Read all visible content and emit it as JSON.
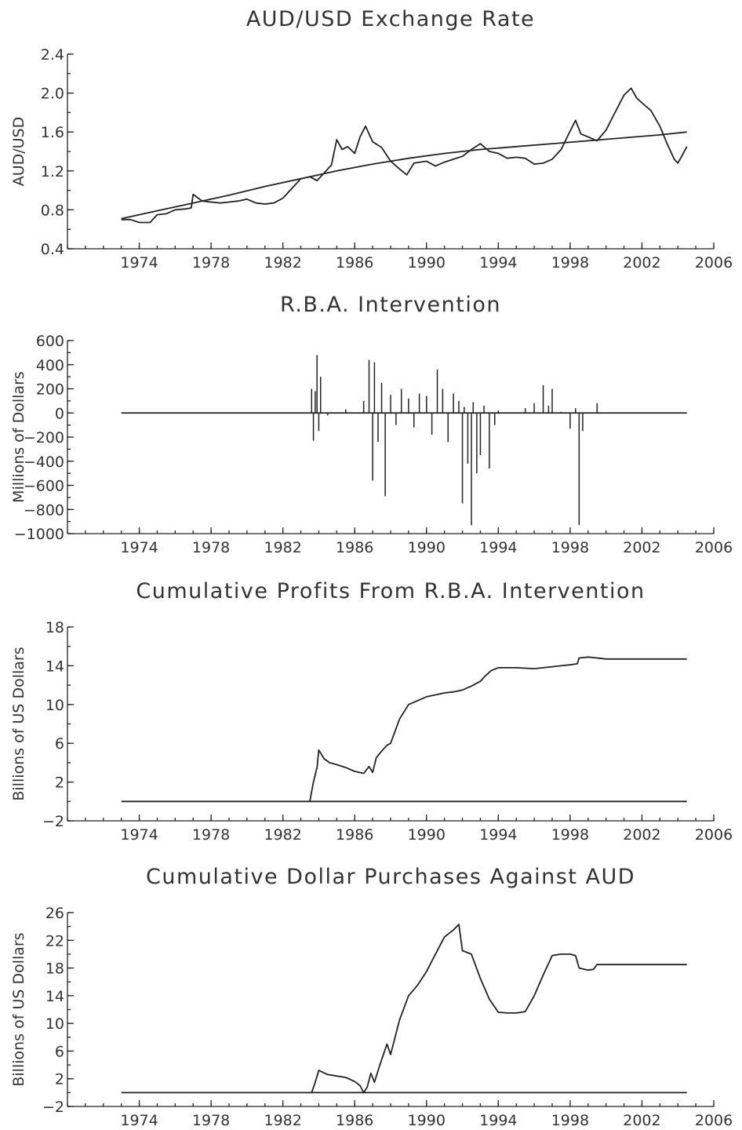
{
  "chart_data": [
    {
      "type": "line",
      "title": "AUD/USD Exchange Rate",
      "xlabel": "",
      "ylabel": "AUD/USD",
      "xlim": [
        1970,
        2006
      ],
      "ylim": [
        0.4,
        2.4
      ],
      "x_ticks": [
        "1974",
        "1978",
        "1982",
        "1986",
        "1990",
        "1994",
        "1998",
        "2002",
        "2006"
      ],
      "y_ticks": [
        "0.4",
        "0.8",
        "1.2",
        "1.6",
        "2.0",
        "2.4"
      ],
      "grid": false,
      "series": [
        {
          "kind": "exchange-rate",
          "x": [
            1973.0,
            1973.5,
            1974.0,
            1974.6,
            1975.0,
            1975.5,
            1976.0,
            1976.6,
            1976.9,
            1977.0,
            1977.5,
            1978.0,
            1978.5,
            1979.0,
            1979.5,
            1980.0,
            1980.5,
            1981.0,
            1981.5,
            1982.0,
            1982.5,
            1983.0,
            1983.5,
            1983.9,
            1984.3,
            1984.7,
            1985.0,
            1985.3,
            1985.6,
            1986.0,
            1986.3,
            1986.6,
            1987.0,
            1987.5,
            1988.0,
            1988.5,
            1988.9,
            1989.3,
            1990.0,
            1990.5,
            1991.0,
            1991.5,
            1992.0,
            1992.5,
            1993.0,
            1993.5,
            1994.0,
            1994.5,
            1995.0,
            1995.5,
            1996.0,
            1996.5,
            1997.0,
            1997.5,
            1998.0,
            1998.3,
            1998.6,
            1999.0,
            1999.5,
            2000.0,
            2000.5,
            2001.0,
            2001.4,
            2001.7,
            2002.0,
            2002.5,
            2003.0,
            2003.4,
            2003.8,
            2004.0,
            2004.3,
            2004.5
          ],
          "y": [
            0.7,
            0.7,
            0.67,
            0.67,
            0.75,
            0.76,
            0.8,
            0.81,
            0.82,
            0.96,
            0.89,
            0.88,
            0.87,
            0.88,
            0.89,
            0.91,
            0.87,
            0.86,
            0.87,
            0.92,
            1.02,
            1.12,
            1.14,
            1.1,
            1.18,
            1.26,
            1.52,
            1.42,
            1.45,
            1.38,
            1.55,
            1.66,
            1.5,
            1.44,
            1.3,
            1.22,
            1.16,
            1.28,
            1.3,
            1.25,
            1.29,
            1.32,
            1.35,
            1.42,
            1.48,
            1.4,
            1.38,
            1.33,
            1.34,
            1.33,
            1.27,
            1.28,
            1.32,
            1.42,
            1.61,
            1.72,
            1.58,
            1.55,
            1.51,
            1.62,
            1.8,
            1.98,
            2.05,
            1.95,
            1.9,
            1.82,
            1.66,
            1.48,
            1.32,
            1.28,
            1.38,
            1.45
          ]
        },
        {
          "kind": "trend",
          "x": [
            1973.0,
            1975.0,
            1977.0,
            1979.0,
            1981.0,
            1983.0,
            1985.0,
            1987.0,
            1989.0,
            1991.0,
            1993.0,
            1995.0,
            1997.0,
            1999.0,
            2001.0,
            2003.0,
            2004.5
          ],
          "y": [
            0.71,
            0.79,
            0.87,
            0.95,
            1.04,
            1.12,
            1.2,
            1.27,
            1.33,
            1.38,
            1.42,
            1.45,
            1.48,
            1.51,
            1.54,
            1.57,
            1.6
          ]
        }
      ]
    },
    {
      "type": "bar",
      "title": "R.B.A. Intervention",
      "xlabel": "",
      "ylabel": "Millions of Dollars",
      "xlim": [
        1970,
        2006
      ],
      "ylim": [
        -1000,
        600
      ],
      "x_ticks": [
        "1974",
        "1978",
        "1982",
        "1986",
        "1990",
        "1994",
        "1998",
        "2002",
        "2006"
      ],
      "y_ticks": [
        "600",
        "400",
        "200",
        "0",
        "−200",
        "−400",
        "−600",
        "−800",
        "−1000"
      ],
      "grid": false,
      "zero_line_x": [
        1973.0,
        2004.5
      ],
      "x": [
        1983.6,
        1983.7,
        1983.8,
        1983.9,
        1984.0,
        1984.1,
        1984.5,
        1985.5,
        1986.5,
        1986.8,
        1987.0,
        1987.1,
        1987.3,
        1987.5,
        1987.7,
        1988.0,
        1988.3,
        1988.6,
        1989.0,
        1989.3,
        1989.6,
        1990.0,
        1990.3,
        1990.6,
        1990.9,
        1991.2,
        1991.5,
        1991.8,
        1992.0,
        1992.1,
        1992.3,
        1992.5,
        1992.6,
        1992.8,
        1993.0,
        1993.2,
        1993.5,
        1993.8,
        1994.0,
        1995.5,
        1996.0,
        1996.5,
        1996.8,
        1997.0,
        1997.5,
        1998.0,
        1998.3,
        1998.5,
        1998.7,
        1999.5
      ],
      "values": [
        200,
        -230,
        180,
        480,
        -150,
        300,
        -20,
        30,
        100,
        440,
        -560,
        420,
        -240,
        250,
        -690,
        150,
        -100,
        200,
        120,
        -120,
        160,
        140,
        -180,
        360,
        200,
        -240,
        160,
        100,
        -750,
        50,
        -420,
        -930,
        90,
        -500,
        -350,
        60,
        -460,
        -100,
        20,
        40,
        80,
        230,
        60,
        200,
        10,
        -130,
        40,
        -930,
        -150,
        80
      ]
    },
    {
      "type": "line",
      "title": "Cumulative Profits From R.B.A. Intervention",
      "xlabel": "",
      "ylabel": "Billions of US Dollars",
      "xlim": [
        1970,
        2006
      ],
      "ylim": [
        -2,
        18
      ],
      "x_ticks": [
        "1974",
        "1978",
        "1982",
        "1986",
        "1990",
        "1994",
        "1998",
        "2002",
        "2006"
      ],
      "y_ticks": [
        "−2",
        "2",
        "6",
        "10",
        "14",
        "18"
      ],
      "grid": false,
      "series": [
        {
          "kind": "baseline",
          "x": [
            1973.0,
            2004.5
          ],
          "y": [
            0.0,
            0.0
          ]
        },
        {
          "kind": "cumulative-profits",
          "x": [
            1983.5,
            1983.7,
            1983.9,
            1984.0,
            1984.3,
            1984.6,
            1985.0,
            1985.5,
            1986.0,
            1986.5,
            1986.8,
            1987.0,
            1987.2,
            1987.5,
            1987.8,
            1988.0,
            1988.5,
            1989.0,
            1989.5,
            1990.0,
            1990.5,
            1991.0,
            1991.5,
            1992.0,
            1992.5,
            1993.0,
            1993.3,
            1993.6,
            1994.0,
            1995.0,
            1996.0,
            1996.5,
            1997.0,
            1997.5,
            1998.0,
            1998.4,
            1998.5,
            1999.0,
            1999.5,
            2000.0,
            2004.5
          ],
          "y": [
            0.0,
            2.0,
            3.5,
            5.3,
            4.4,
            4.0,
            3.8,
            3.5,
            3.1,
            2.9,
            3.6,
            3.0,
            4.5,
            5.2,
            5.8,
            6.0,
            8.5,
            10.0,
            10.4,
            10.8,
            11.0,
            11.2,
            11.3,
            11.5,
            11.9,
            12.4,
            13.0,
            13.5,
            13.8,
            13.8,
            13.7,
            13.8,
            13.9,
            14.0,
            14.1,
            14.2,
            14.8,
            14.9,
            14.8,
            14.7,
            14.7
          ]
        }
      ]
    },
    {
      "type": "line",
      "title": "Cumulative Dollar Purchases Against AUD",
      "xlabel": "",
      "ylabel": "Billions of US Dollars",
      "xlim": [
        1970,
        2006
      ],
      "ylim": [
        -2,
        26
      ],
      "x_ticks": [
        "1974",
        "1978",
        "1982",
        "1986",
        "1990",
        "1994",
        "1998",
        "2002",
        "2006"
      ],
      "y_ticks": [
        "−2",
        "2",
        "6",
        "10",
        "14",
        "18",
        "22",
        "26"
      ],
      "grid": false,
      "series": [
        {
          "kind": "baseline",
          "x": [
            1973.0,
            2004.5
          ],
          "y": [
            0.0,
            0.0
          ]
        },
        {
          "kind": "cumulative-purchases",
          "x": [
            1983.6,
            1983.8,
            1984.0,
            1984.5,
            1985.0,
            1985.5,
            1986.0,
            1986.3,
            1986.5,
            1986.7,
            1986.9,
            1987.1,
            1987.4,
            1987.6,
            1987.8,
            1988.0,
            1988.5,
            1989.0,
            1989.5,
            1990.0,
            1990.5,
            1991.0,
            1991.5,
            1991.8,
            1992.0,
            1992.5,
            1993.0,
            1993.5,
            1994.0,
            1994.5,
            1995.0,
            1995.5,
            1996.0,
            1996.5,
            1997.0,
            1997.5,
            1998.0,
            1998.3,
            1998.5,
            1999.0,
            1999.3,
            1999.5,
            2004.5
          ],
          "y": [
            0.0,
            1.5,
            3.2,
            2.6,
            2.4,
            2.2,
            1.6,
            1.0,
            0.0,
            0.8,
            2.8,
            1.5,
            4.0,
            5.5,
            7.0,
            5.5,
            10.5,
            14.0,
            15.5,
            17.5,
            20.0,
            22.5,
            23.5,
            24.3,
            20.5,
            20.0,
            16.5,
            13.5,
            11.6,
            11.5,
            11.5,
            11.7,
            14.0,
            17.0,
            19.8,
            20.0,
            20.0,
            19.8,
            18.0,
            17.7,
            17.8,
            18.5,
            18.5
          ]
        }
      ]
    }
  ]
}
